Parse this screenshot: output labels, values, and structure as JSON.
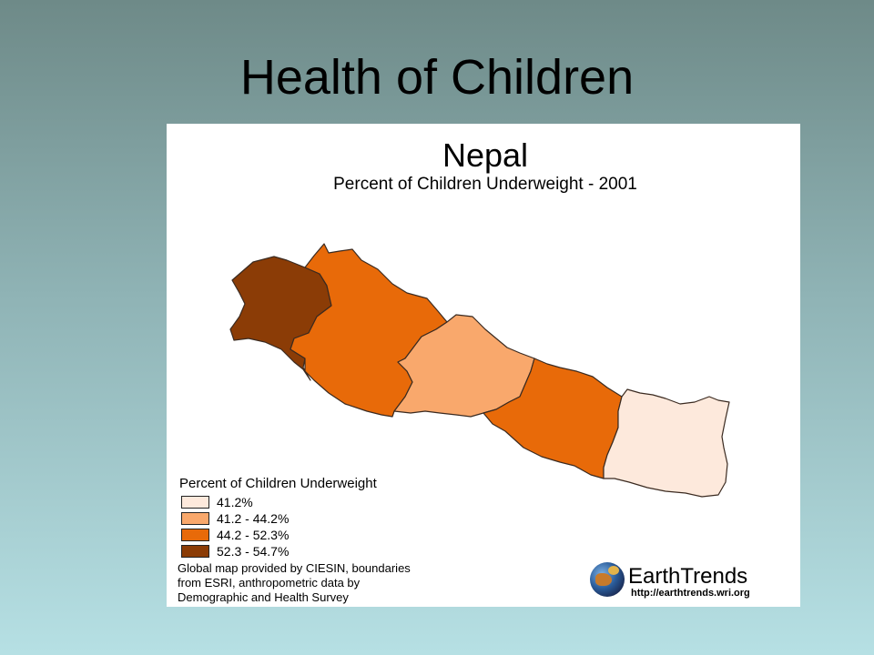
{
  "slide": {
    "title": "Health of Children"
  },
  "map": {
    "title": "Nepal",
    "subtitle": "Percent of Children Underweight - 2001",
    "regions": [
      {
        "id": "far-western",
        "fill": "#8b3c06"
      },
      {
        "id": "mid-western",
        "fill": "#e86a09"
      },
      {
        "id": "western",
        "fill": "#f9a86c"
      },
      {
        "id": "central",
        "fill": "#e86a09"
      },
      {
        "id": "eastern",
        "fill": "#fde9dc"
      }
    ]
  },
  "legend": {
    "title": "Percent of Children Underweight",
    "items": [
      {
        "label": "41.2%",
        "color": "#fde9dc"
      },
      {
        "label": "41.2 - 44.2%",
        "color": "#f9a86c"
      },
      {
        "label": "44.2 - 52.3%",
        "color": "#e86a09"
      },
      {
        "label": "52.3 - 54.7%",
        "color": "#8b3c06"
      }
    ]
  },
  "credits": {
    "line1": "Global map provided by CIESIN, boundaries",
    "line2": "from ESRI, anthropometric data by",
    "line3": "Demographic and Health Survey"
  },
  "brand": {
    "name": "EarthTrends",
    "url": "http://earthtrends.wri.org",
    "icon": "globe-icon"
  }
}
